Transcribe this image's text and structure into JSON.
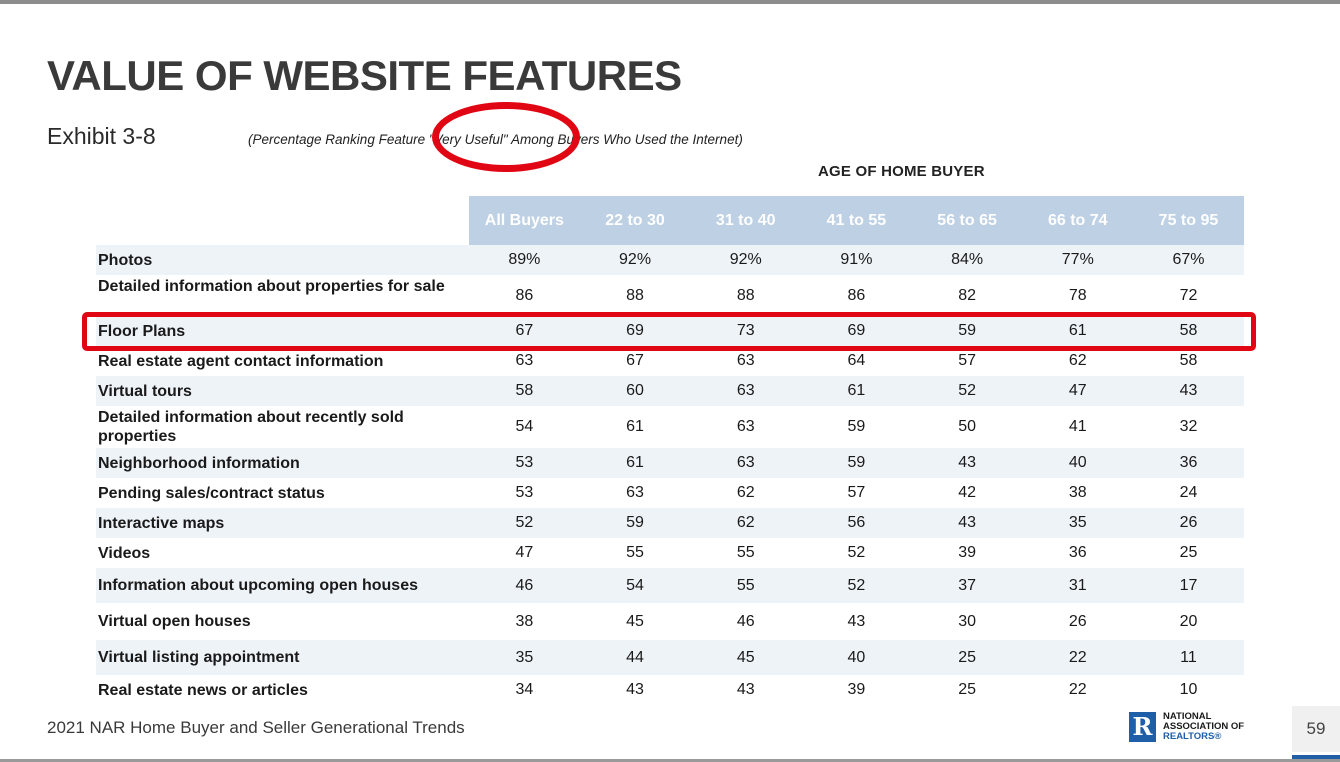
{
  "slide": {
    "title": "VALUE OF WEBSITE FEATURES",
    "exhibit": "Exhibit 3-8",
    "subtitle": "(Percentage Ranking Feature \"Very Useful\" Among Buyers Who Used the Internet)",
    "group_header": "AGE OF HOME BUYER",
    "footer": "2021 NAR Home Buyer and Seller Generational Trends",
    "page_number": "59",
    "logo": {
      "mark": "R",
      "line1": "NATIONAL",
      "line2": "ASSOCIATION OF",
      "line3": "REALTORS®"
    }
  },
  "table": {
    "columns": [
      "All Buyers",
      "22 to 30",
      "31 to 40",
      "41 to 55",
      "56 to 65",
      "66 to 74",
      "75 to 95"
    ],
    "rows": [
      {
        "label": "Photos",
        "values": [
          "89%",
          "92%",
          "92%",
          "91%",
          "84%",
          "77%",
          "67%"
        ]
      },
      {
        "label": "Detailed information about properties for sale",
        "values": [
          "86",
          "88",
          "88",
          "86",
          "82",
          "78",
          "72"
        ]
      },
      {
        "label": "Floor Plans",
        "values": [
          "67",
          "69",
          "73",
          "69",
          "59",
          "61",
          "58"
        ]
      },
      {
        "label": "Real estate agent contact information",
        "values": [
          "63",
          "67",
          "63",
          "64",
          "57",
          "62",
          "58"
        ]
      },
      {
        "label": "Virtual tours",
        "values": [
          "58",
          "60",
          "63",
          "61",
          "52",
          "47",
          "43"
        ]
      },
      {
        "label": "Detailed information about recently sold properties",
        "values": [
          "54",
          "61",
          "63",
          "59",
          "50",
          "41",
          "32"
        ]
      },
      {
        "label": "Neighborhood information",
        "values": [
          "53",
          "61",
          "63",
          "59",
          "43",
          "40",
          "36"
        ]
      },
      {
        "label": "Pending sales/contract status",
        "values": [
          "53",
          "63",
          "62",
          "57",
          "42",
          "38",
          "24"
        ]
      },
      {
        "label": "Interactive maps",
        "values": [
          "52",
          "59",
          "62",
          "56",
          "43",
          "35",
          "26"
        ]
      },
      {
        "label": "Videos",
        "values": [
          "47",
          "55",
          "55",
          "52",
          "39",
          "36",
          "25"
        ]
      },
      {
        "label": "Information about upcoming open houses",
        "values": [
          "46",
          "54",
          "55",
          "52",
          "37",
          "31",
          "17"
        ]
      },
      {
        "label": "Virtual open houses",
        "values": [
          "38",
          "45",
          "46",
          "43",
          "30",
          "26",
          "20"
        ]
      },
      {
        "label": "Virtual listing appointment",
        "values": [
          "35",
          "44",
          "45",
          "40",
          "25",
          "22",
          "11"
        ]
      },
      {
        "label": "Real estate news or articles",
        "values": [
          "34",
          "43",
          "43",
          "39",
          "25",
          "22",
          "10"
        ]
      }
    ]
  },
  "colors": {
    "header_fill": "#bed0e4",
    "row_shade": "#eef3f8",
    "annotation": "#e10613",
    "brand_blue": "#1e5fa8"
  }
}
